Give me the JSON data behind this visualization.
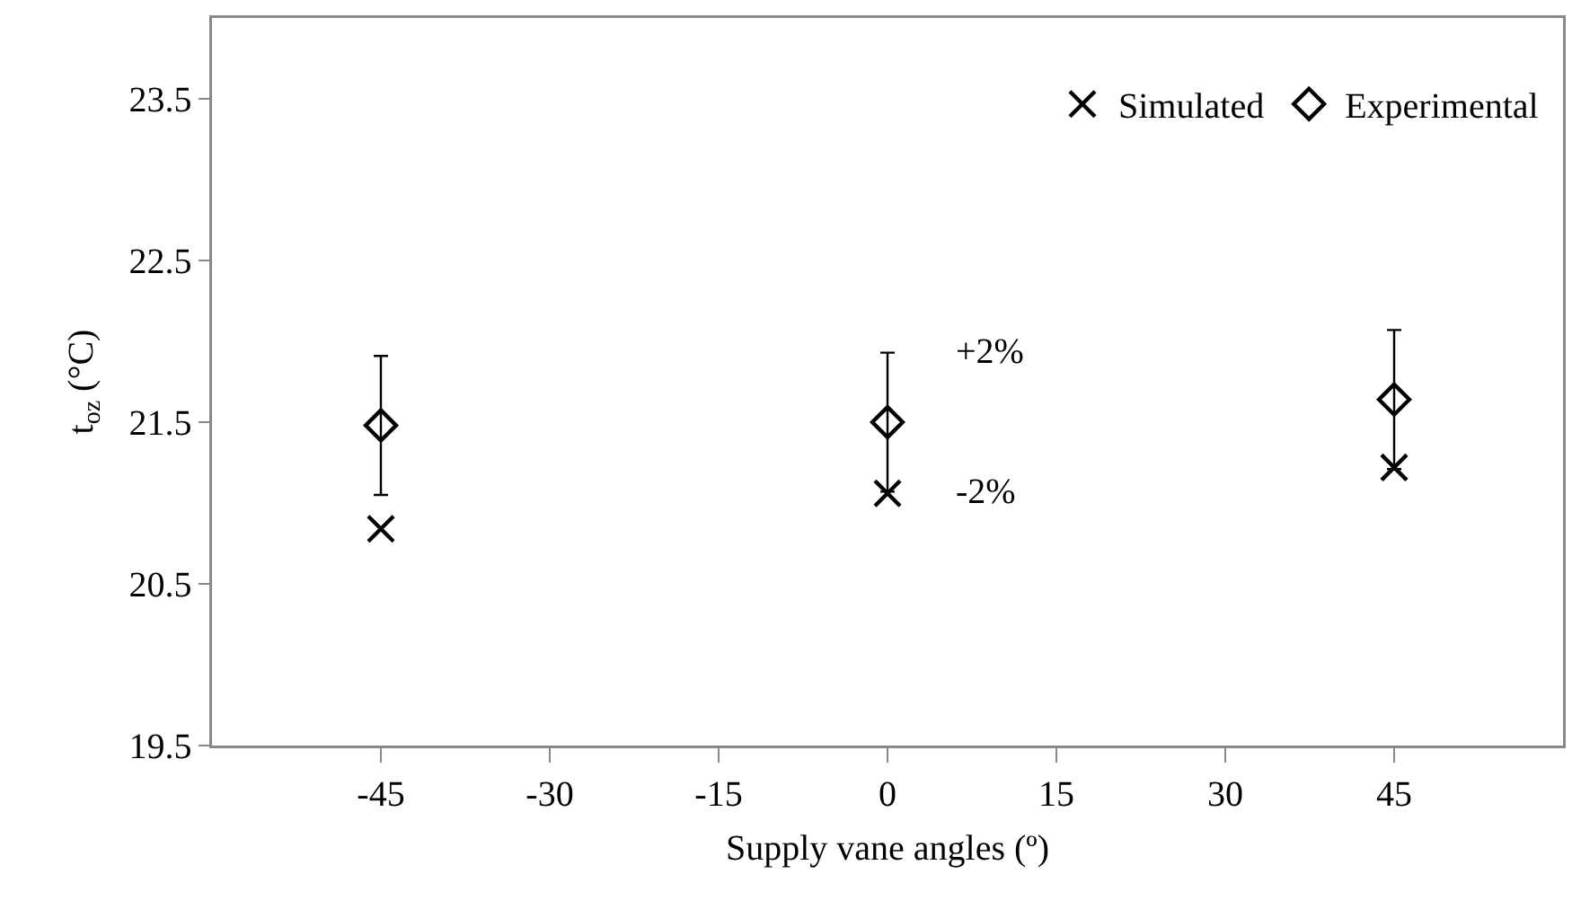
{
  "chart_data": {
    "type": "scatter",
    "xlabel": "Supply vane angles (º)",
    "ylabel": "t$_{oz}$ (°C)",
    "x": [
      -45,
      0,
      45
    ],
    "series": [
      {
        "name": "Simulated",
        "color": "#000000",
        "marker": "cross",
        "values": [
          20.84,
          21.06,
          21.22
        ]
      },
      {
        "name": "Experimental",
        "color": "#000000",
        "marker": "diamond",
        "values": [
          21.48,
          21.5,
          21.64
        ],
        "errors": [
          0.43,
          0.43,
          0.43
        ]
      }
    ],
    "xlim": [
      -60,
      60
    ],
    "xticks": [
      -45,
      -30,
      -15,
      0,
      15,
      30,
      45
    ],
    "ylim": [
      19.5,
      24
    ],
    "yticks": [
      {
        "value": 19.5,
        "label": "19.5"
      },
      {
        "value": 20.5,
        "label": "20.5"
      },
      {
        "value": 21.5,
        "label": "21.5"
      },
      {
        "value": 22.5,
        "label": "22.5"
      },
      {
        "value": 23.5,
        "label": "23.5"
      }
    ],
    "annotations": [
      {
        "text": "+2%",
        "x": 0,
        "y": 21.93
      },
      {
        "text": "-2%",
        "x": 0,
        "y": 21.07
      }
    ],
    "grid": false,
    "legend": "top right"
  }
}
